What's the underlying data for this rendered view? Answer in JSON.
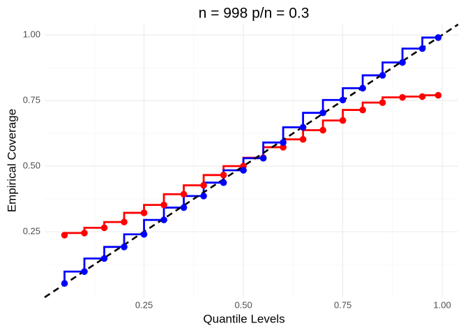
{
  "chart_data": {
    "type": "step",
    "title": "n = 998 p/n = 0.3",
    "x_label": "Quantile Levels",
    "y_label": "Empirical Coverage",
    "x": [
      0.05,
      0.1,
      0.15,
      0.2,
      0.25,
      0.3,
      0.35,
      0.4,
      0.45,
      0.5,
      0.55,
      0.6,
      0.65,
      0.7,
      0.75,
      0.8,
      0.85,
      0.9,
      0.95,
      0.99
    ],
    "series": [
      {
        "color": "#ff0000",
        "values": [
          0.237,
          0.245,
          0.265,
          0.287,
          0.322,
          0.352,
          0.393,
          0.427,
          0.466,
          0.5,
          0.532,
          0.572,
          0.602,
          0.637,
          0.674,
          0.714,
          0.742,
          0.762,
          0.765,
          0.77
        ]
      },
      {
        "color": "#0000ff",
        "values": [
          0.053,
          0.098,
          0.148,
          0.192,
          0.24,
          0.295,
          0.342,
          0.386,
          0.437,
          0.484,
          0.53,
          0.59,
          0.648,
          0.703,
          0.752,
          0.797,
          0.846,
          0.895,
          0.948,
          0.99
        ]
      }
    ],
    "xlim": [
      0,
      1.04
    ],
    "ylim": [
      0,
      1.04
    ],
    "xticks": [
      {
        "value": 0.25,
        "label": "0.25"
      },
      {
        "value": 0.5,
        "label": "0.50"
      },
      {
        "value": 0.75,
        "label": "0.75"
      },
      {
        "value": 1,
        "label": "1.00"
      }
    ],
    "yticks": [
      {
        "value": 0.25,
        "label": "0.25"
      },
      {
        "value": 0.5,
        "label": "0.50"
      },
      {
        "value": 0.75,
        "label": "0.75"
      },
      {
        "value": 1,
        "label": "1.00"
      }
    ],
    "grid": true,
    "reference_line": "identity"
  }
}
